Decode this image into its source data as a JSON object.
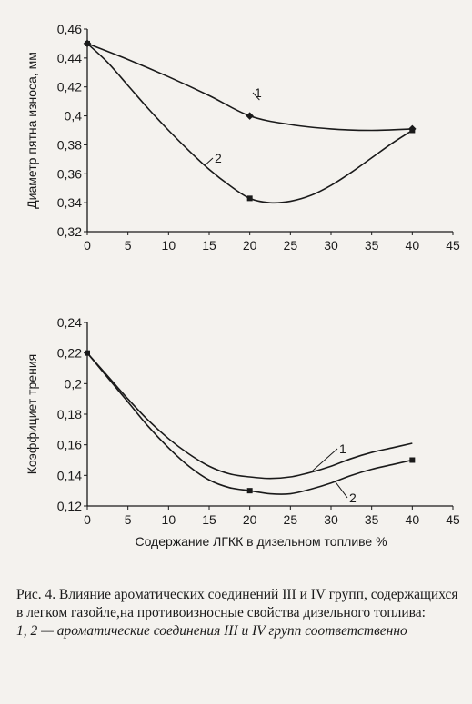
{
  "chart_data": [
    {
      "type": "line",
      "title": "",
      "xlabel": "",
      "ylabel": "Диаметр пятна износа, мм",
      "xlim": [
        0,
        45
      ],
      "ylim": [
        0.32,
        0.46
      ],
      "x_ticks": [
        "0",
        "5",
        "10",
        "15",
        "20",
        "25",
        "30",
        "35",
        "40",
        "45"
      ],
      "y_ticks": [
        "0,32",
        "0,34",
        "0,36",
        "0,38",
        "0,4",
        "0,42",
        "0,44",
        "0,46"
      ],
      "series": [
        {
          "name": "1",
          "x": [
            0,
            5,
            10,
            15,
            20,
            25,
            30,
            35,
            40
          ],
          "y": [
            0.45,
            0.439,
            0.427,
            0.414,
            0.4,
            0.394,
            0.391,
            0.39,
            0.391
          ],
          "markers_x": [
            0,
            20,
            40
          ],
          "markers_y": [
            0.45,
            0.4,
            0.391
          ]
        },
        {
          "name": "2",
          "x": [
            0,
            2.5,
            5,
            7.5,
            10,
            12.5,
            15,
            17.5,
            20,
            22.5,
            25,
            27.5,
            30,
            32.5,
            35,
            37.5,
            40
          ],
          "y": [
            0.45,
            0.437,
            0.421,
            0.405,
            0.39,
            0.376,
            0.363,
            0.352,
            0.343,
            0.34,
            0.341,
            0.345,
            0.352,
            0.361,
            0.371,
            0.381,
            0.39
          ],
          "markers_x": [
            0,
            20,
            40
          ],
          "markers_y": [
            0.45,
            0.343,
            0.39
          ]
        }
      ]
    },
    {
      "type": "line",
      "title": "",
      "xlabel": "Содержание ЛГКК в дизельном топливе %",
      "ylabel": "Коэффициет трения",
      "xlim": [
        0,
        45
      ],
      "ylim": [
        0.12,
        0.24
      ],
      "x_ticks": [
        "0",
        "5",
        "10",
        "15",
        "20",
        "25",
        "30",
        "35",
        "40",
        "45"
      ],
      "y_ticks": [
        "0,12",
        "0,14",
        "0,16",
        "0,18",
        "0,2",
        "0,22",
        "0,24"
      ],
      "series": [
        {
          "name": "1",
          "x": [
            0,
            2.5,
            5,
            7.5,
            10,
            12.5,
            15,
            17.5,
            20,
            22.5,
            25,
            27.5,
            30,
            32.5,
            35,
            37.5,
            40
          ],
          "y": [
            0.22,
            0.205,
            0.19,
            0.176,
            0.164,
            0.154,
            0.146,
            0.141,
            0.139,
            0.138,
            0.139,
            0.142,
            0.146,
            0.151,
            0.155,
            0.158,
            0.161
          ],
          "markers_x": [],
          "markers_y": []
        },
        {
          "name": "2",
          "x": [
            0,
            2.5,
            5,
            7.5,
            10,
            12.5,
            15,
            17.5,
            20,
            22.5,
            25,
            27.5,
            30,
            32.5,
            35,
            37.5,
            40
          ],
          "y": [
            0.22,
            0.204,
            0.188,
            0.172,
            0.158,
            0.146,
            0.137,
            0.132,
            0.13,
            0.128,
            0.128,
            0.131,
            0.135,
            0.14,
            0.144,
            0.147,
            0.15
          ],
          "markers_x": [
            0,
            20,
            40
          ],
          "markers_y": [
            0.22,
            0.13,
            0.15
          ]
        }
      ]
    }
  ],
  "caption": {
    "main": "Рис. 4. Влияние ароматических соединений III и IV групп, содержащихся в легком газойле,на противоизносные свойства дизельного топлива:",
    "legend_note": "1, 2 — ароматические соединения III и IV групп соответственно"
  }
}
